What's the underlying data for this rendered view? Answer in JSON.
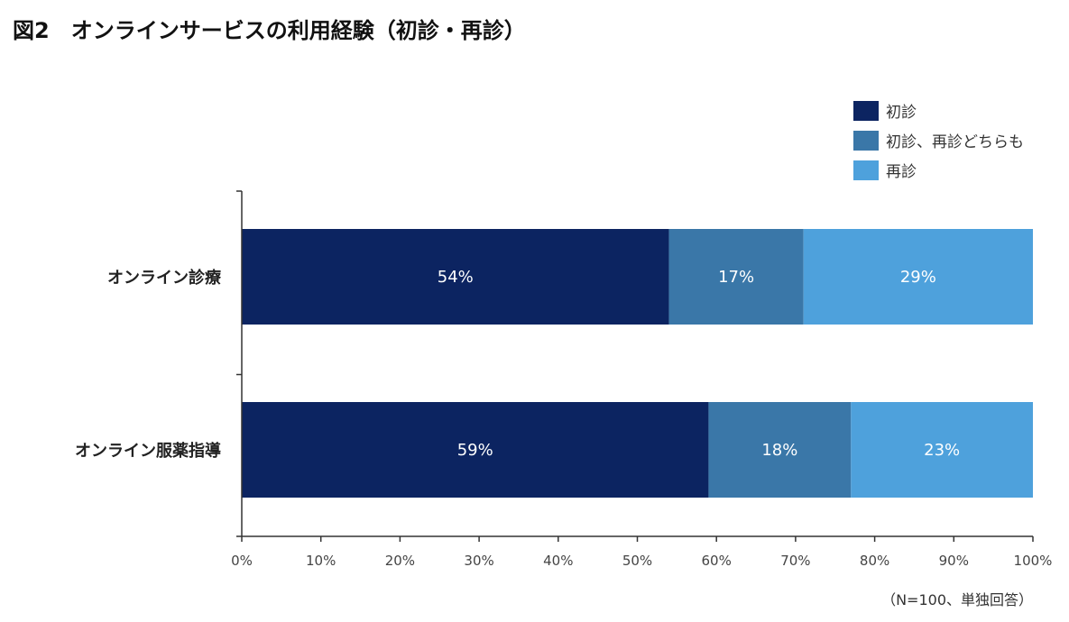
{
  "figure_title": "図2　オンラインサービスの利用経験（初診・再診）",
  "note": "（N=100、単独回答）",
  "colors": {
    "first_visit": "#0c2461",
    "both": "#3a77a8",
    "revisit": "#4ea1dc",
    "axis": "#333333"
  },
  "chart_data": {
    "type": "bar",
    "orientation": "horizontal",
    "stacked": true,
    "categories": [
      "オンライン診療",
      "オンライン服薬指導"
    ],
    "series": [
      {
        "name": "初診",
        "values": [
          54,
          59
        ],
        "labels": [
          "54%",
          "59%"
        ]
      },
      {
        "name": "初診、再診どちらも",
        "values": [
          17,
          18
        ],
        "labels": [
          "17%",
          "18%"
        ]
      },
      {
        "name": "再診",
        "values": [
          29,
          23
        ],
        "labels": [
          "29%",
          "23%"
        ]
      }
    ],
    "xlim": [
      0,
      100
    ],
    "x_ticks": [
      "0%",
      "10%",
      "20%",
      "30%",
      "40%",
      "50%",
      "60%",
      "70%",
      "80%",
      "90%",
      "100%"
    ],
    "legend_position": "top-right",
    "grid": false
  }
}
